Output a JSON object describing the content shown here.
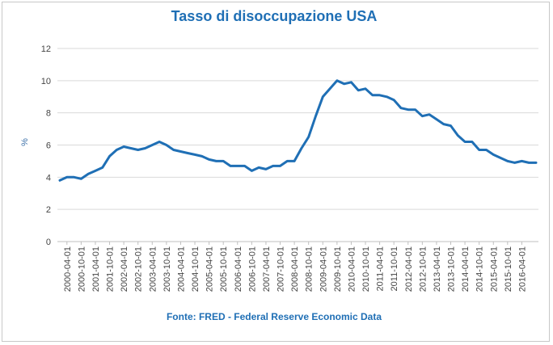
{
  "chart_data": {
    "type": "line",
    "title": "Tasso di disoccupazione USA",
    "ylabel": "%",
    "xlabel": "",
    "source": "Fonte: FRED  - Federal Reserve Economic  Data",
    "ylim": [
      0,
      12
    ],
    "yticks": [
      "0",
      "2",
      "4",
      "6",
      "8",
      "10",
      "12"
    ],
    "grid": true,
    "line_color": "#1f6fb5",
    "x_tick_labels": [
      "2000-04-01",
      "2000-10-01",
      "2001-04-01",
      "2001-10-01",
      "2002-04-01",
      "2002-10-01",
      "2003-04-01",
      "2003-10-01",
      "2004-04-01",
      "2004-10-01",
      "2005-04-01",
      "2005-10-01",
      "2006-04-01",
      "2006-10-01",
      "2007-04-01",
      "2007-10-01",
      "2008-04-01",
      "2008-10-01",
      "2009-04-01",
      "2009-10-01",
      "2010-04-01",
      "2010-10-01",
      "2011-04-01",
      "2011-10-01",
      "2012-04-01",
      "2012-10-01",
      "2013-04-01",
      "2013-10-01",
      "2014-04-01",
      "2014-10-01",
      "2015-04-01",
      "2015-10-01",
      "2016-04-01"
    ],
    "series": [
      {
        "name": "",
        "x": [
          "2000-01",
          "2000-04",
          "2000-07",
          "2000-10",
          "2001-01",
          "2001-04",
          "2001-07",
          "2001-10",
          "2002-01",
          "2002-04",
          "2002-07",
          "2002-10",
          "2003-01",
          "2003-04",
          "2003-07",
          "2003-10",
          "2004-01",
          "2004-04",
          "2004-07",
          "2004-10",
          "2005-01",
          "2005-04",
          "2005-07",
          "2005-10",
          "2006-01",
          "2006-04",
          "2006-07",
          "2006-10",
          "2007-01",
          "2007-04",
          "2007-07",
          "2007-10",
          "2008-01",
          "2008-04",
          "2008-07",
          "2008-10",
          "2009-01",
          "2009-04",
          "2009-07",
          "2009-10",
          "2010-01",
          "2010-04",
          "2010-07",
          "2010-10",
          "2011-01",
          "2011-04",
          "2011-07",
          "2011-10",
          "2012-01",
          "2012-04",
          "2012-07",
          "2012-10",
          "2013-01",
          "2013-04",
          "2013-07",
          "2013-10",
          "2014-01",
          "2014-04",
          "2014-07",
          "2014-10",
          "2015-01",
          "2015-04",
          "2015-07",
          "2015-10",
          "2016-01",
          "2016-04",
          "2016-07",
          "2016-10"
        ],
        "values": [
          3.8,
          4.0,
          4.0,
          3.9,
          4.2,
          4.4,
          4.6,
          5.3,
          5.7,
          5.9,
          5.8,
          5.7,
          5.8,
          6.0,
          6.2,
          6.0,
          5.7,
          5.6,
          5.5,
          5.4,
          5.3,
          5.1,
          5.0,
          5.0,
          4.7,
          4.7,
          4.7,
          4.4,
          4.6,
          4.5,
          4.7,
          4.7,
          5.0,
          5.0,
          5.8,
          6.5,
          7.8,
          9.0,
          9.5,
          10.0,
          9.8,
          9.9,
          9.4,
          9.5,
          9.1,
          9.1,
          9.0,
          8.8,
          8.3,
          8.2,
          8.2,
          7.8,
          7.9,
          7.6,
          7.3,
          7.2,
          6.6,
          6.2,
          6.2,
          5.7,
          5.7,
          5.4,
          5.2,
          5.0,
          4.9,
          5.0,
          4.9,
          4.9
        ]
      }
    ]
  }
}
